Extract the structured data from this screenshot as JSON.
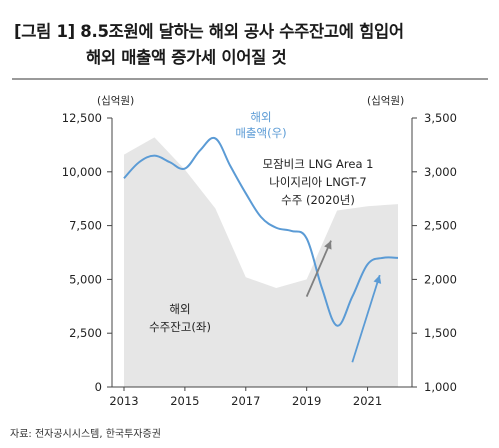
{
  "title": {
    "line1": "[그림 1] 8.5조원에 달하는 해외 공사 수주잔고에 힘입어",
    "line2": "해외 매출액 증가세 이어질 것"
  },
  "source": "자료: 전자공시시스템, 한국투자증권",
  "chart_data": {
    "type": "area",
    "left_axis": {
      "unit": "(십억원)",
      "min": 0,
      "max": 12500,
      "ticks": [
        0,
        2500,
        5000,
        7500,
        10000,
        12500
      ],
      "tick_labels": [
        "0",
        "2,500",
        "5,000",
        "7,500",
        "10,000",
        "12,500"
      ]
    },
    "right_axis": {
      "unit": "(십억원)",
      "min": 1000,
      "max": 3500,
      "ticks": [
        1000,
        1500,
        2000,
        2500,
        3000,
        3500
      ],
      "tick_labels": [
        "1,000",
        "1,500",
        "2,000",
        "2,500",
        "3,000",
        "3,500"
      ]
    },
    "x_axis": {
      "min": 2013,
      "max": 2022,
      "ticks": [
        2013,
        2015,
        2017,
        2019,
        2021
      ],
      "tick_labels": [
        "2013",
        "2015",
        "2017",
        "2019",
        "2021"
      ]
    },
    "series": [
      {
        "name": "해외 수주잔고(좌)",
        "axis": "left",
        "style": "area",
        "color": "#e6e6e6",
        "x": [
          2013,
          2014,
          2015,
          2016,
          2017,
          2018,
          2019,
          2020,
          2021,
          2022
        ],
        "values": [
          10800,
          11600,
          10100,
          8300,
          5100,
          4600,
          5000,
          8200,
          8400,
          8500
        ]
      },
      {
        "name": "해외 매출액(우)",
        "axis": "right",
        "style": "line",
        "color": "#5b9bd5",
        "x": [
          2013,
          2013.5,
          2014,
          2014.5,
          2015,
          2015.5,
          2016,
          2016.5,
          2017,
          2017.5,
          2018,
          2018.5,
          2019,
          2019.5,
          2020,
          2020.5,
          2021,
          2021.5,
          2022
        ],
        "values": [
          2940,
          3090,
          3150,
          3090,
          3030,
          3200,
          3310,
          3050,
          2800,
          2580,
          2480,
          2450,
          2380,
          1920,
          1570,
          1840,
          2140,
          2200,
          2200
        ]
      }
    ],
    "annotations": [
      {
        "text_lines": [
          "해외",
          "매출액(우)"
        ],
        "color": "#5b9bd5"
      },
      {
        "text_lines": [
          "모잠비크 LNG Area 1",
          "나이지리아 LNGT-7",
          "수주 (2020년)"
        ],
        "color": "#222222"
      },
      {
        "text_lines": [
          "해외",
          "수주잔고(좌)"
        ],
        "color": "#222222"
      }
    ],
    "arrows": [
      {
        "from": [
          2019,
          4200
        ],
        "to": [
          2019.8,
          6800
        ],
        "axis": "left",
        "color": "#808080"
      },
      {
        "from": [
          2020.5,
          1230
        ],
        "to": [
          2021.4,
          2040
        ],
        "axis": "right",
        "color": "#5b9bd5"
      }
    ]
  }
}
